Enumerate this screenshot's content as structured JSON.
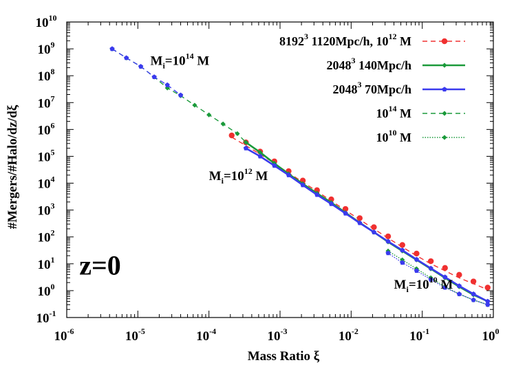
{
  "chart_data": {
    "type": "line",
    "xlabel": "Mass Ratio ξ",
    "ylabel": "#Mergers/#Halo/dz/dξ",
    "xscale": "log",
    "yscale": "log",
    "xlim": [
      1e-06,
      1
    ],
    "ylim": [
      0.1,
      10000000000.0
    ],
    "x_ticks": [
      {
        "base": "10",
        "exp": "-6"
      },
      {
        "base": "10",
        "exp": "-5"
      },
      {
        "base": "10",
        "exp": "-4"
      },
      {
        "base": "10",
        "exp": "-3"
      },
      {
        "base": "10",
        "exp": "-2"
      },
      {
        "base": "10",
        "exp": "-1"
      },
      {
        "base": "10",
        "exp": "0"
      }
    ],
    "y_ticks": [
      {
        "base": "10",
        "exp": "-1"
      },
      {
        "base": "10",
        "exp": "0"
      },
      {
        "base": "10",
        "exp": "1"
      },
      {
        "base": "10",
        "exp": "2"
      },
      {
        "base": "10",
        "exp": "3"
      },
      {
        "base": "10",
        "exp": "4"
      },
      {
        "base": "10",
        "exp": "5"
      },
      {
        "base": "10",
        "exp": "6"
      },
      {
        "base": "10",
        "exp": "7"
      },
      {
        "base": "10",
        "exp": "8"
      },
      {
        "base": "10",
        "exp": "9"
      },
      {
        "base": "10",
        "exp": "10"
      }
    ],
    "grid": false,
    "legend_position": "top-right",
    "series": [
      {
        "label_main": "8192",
        "label_exp": "3",
        "label_rest": " 1120Mpc/h, 10",
        "label_exp2": "12",
        "label_rest2": " M",
        "color": "#f03030",
        "style": "dashed-line-points",
        "marker": "circle",
        "x": [
          0.000209,
          0.000331,
          0.000525,
          0.000832,
          0.00132,
          0.00209,
          0.00331,
          0.00525,
          0.00832,
          0.0132,
          0.0209,
          0.0331,
          0.0525,
          0.0832,
          0.132,
          0.209,
          0.331,
          0.525,
          0.832
        ],
        "y": [
          600000,
          330000,
          150000,
          65000,
          28000,
          12500,
          5500,
          2500,
          1100,
          500,
          230,
          105,
          50,
          24,
          12.5,
          7,
          3.9,
          2.2,
          1.3
        ],
        "fit_y": [
          520000,
          250000,
          120000,
          55000,
          24000,
          11000,
          5000,
          2200,
          980,
          440,
          200,
          90,
          42,
          20,
          10,
          5.5,
          3,
          1.8,
          1.1
        ]
      },
      {
        "label_main": "2048",
        "label_exp": "3",
        "label_rest": " 140Mpc/h",
        "label_exp2": "",
        "label_rest2": "",
        "color": "#1a9a3a",
        "style": "solid-line-points",
        "marker": "diamond",
        "x": [
          0.000331,
          0.000525,
          0.000832,
          0.00132,
          0.00209,
          0.00331,
          0.00525,
          0.00832,
          0.0132,
          0.0209,
          0.0331,
          0.0525,
          0.0832,
          0.132,
          0.209,
          0.331,
          0.525,
          0.832
        ],
        "y": [
          330000,
          140000,
          55000,
          22000,
          9500,
          4200,
          1900,
          800,
          340,
          150,
          65,
          30,
          14,
          6.5,
          3,
          1.4,
          0.7,
          0.4
        ]
      },
      {
        "label_main": "2048",
        "label_exp": "3",
        "label_rest": " 70Mpc/h",
        "label_exp2": "",
        "label_rest2": "",
        "color": "#3a3aee",
        "style": "solid-line-points",
        "marker": "pentagon",
        "x": [
          0.000331,
          0.000525,
          0.000832,
          0.00132,
          0.00209,
          0.00331,
          0.00525,
          0.00832,
          0.0132,
          0.0209,
          0.0331,
          0.0525,
          0.0832,
          0.132,
          0.209,
          0.331,
          0.525,
          0.832
        ],
        "y": [
          200000,
          100000,
          45000,
          20000,
          8500,
          3700,
          1700,
          750,
          330,
          150,
          68,
          32,
          14.5,
          6.8,
          3.2,
          1.5,
          0.75,
          0.4
        ]
      },
      {
        "label_main": "10",
        "label_exp": "14",
        "label_rest": " M",
        "label_exp2": "",
        "label_rest2": "",
        "color": "#1a9a3a",
        "style": "dashed-line-points",
        "marker": "diamond",
        "x": [
          4.35e-06,
          6.9e-06,
          1.1e-05,
          1.7e-05,
          2.6e-05,
          4e-05,
          6.3e-05,
          0.0001,
          0.000158,
          0.000251,
          0.000331
        ],
        "y": [
          1000000000.0,
          460000000.0,
          220000000.0,
          90000000.0,
          35000000.0,
          18000000.0,
          8000000.0,
          3500000.0,
          1600000.0,
          700000,
          330000
        ]
      },
      {
        "label_main": "10",
        "label_exp": "10",
        "label_rest": " M",
        "label_exp2": "",
        "label_rest2": "",
        "color": "#1a9a3a",
        "style": "dotted-line-points",
        "marker": "diamond",
        "x": [
          0.0331,
          0.0525,
          0.0832,
          0.132,
          0.209,
          0.331,
          0.525,
          0.832
        ],
        "y": [
          30,
          14,
          6.5,
          3,
          1.4,
          0.75,
          0.45,
          0.3
        ]
      },
      {
        "label_main": "",
        "label_exp": "",
        "label_rest": "",
        "label_exp2": "",
        "label_rest2": "",
        "color": "#3a3aee",
        "style": "dashed-line-points",
        "marker": "pentagon",
        "x": [
          4.35e-06,
          6.9e-06,
          1.1e-05,
          1.7e-05,
          2.6e-05,
          4e-05
        ],
        "y": [
          1000000000.0,
          460000000.0,
          220000000.0,
          90000000.0,
          45000000.0,
          19000000.0
        ]
      },
      {
        "label_main": "",
        "label_exp": "",
        "label_rest": "",
        "label_exp2": "",
        "label_rest2": "",
        "color": "#3a3aee",
        "style": "dotted-line-points",
        "marker": "pentagon",
        "x": [
          0.0331,
          0.0525,
          0.0832,
          0.132,
          0.209,
          0.331,
          0.525,
          0.832
        ],
        "y": [
          25,
          11,
          5.5,
          2.6,
          1.3,
          0.75,
          0.45,
          0.3
        ]
      }
    ],
    "annotations": [
      {
        "name": "annot-mi14",
        "pre": "M",
        "sub": "i",
        "mid": "=10",
        "sup": "14",
        "post": " M",
        "x": 1.5e-05,
        "y": 250000000.0
      },
      {
        "name": "annot-mi12",
        "pre": "M",
        "sub": "i",
        "mid": "=10",
        "sup": "12",
        "post": " M",
        "x": 0.0001,
        "y": 13000
      },
      {
        "name": "annot-mi10",
        "pre": "M",
        "sub": "i",
        "mid": "=10",
        "sup": "10",
        "post": " M",
        "x": 0.04,
        "y": 1.2
      },
      {
        "name": "annot-z0",
        "pre": "z=0",
        "sub": "",
        "mid": "",
        "sup": "",
        "post": "",
        "x": 1.5e-06,
        "y": 4,
        "big": true
      }
    ]
  }
}
